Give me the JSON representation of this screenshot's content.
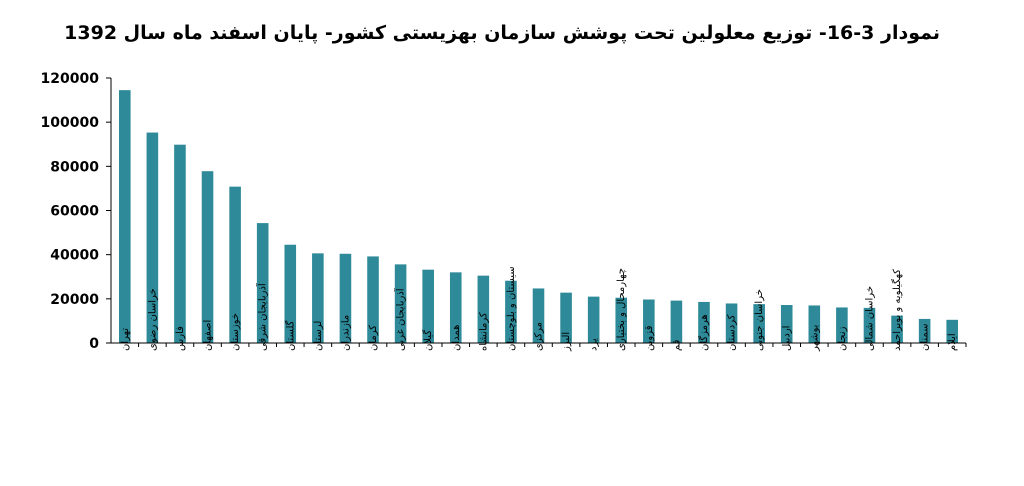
{
  "chart_data": {
    "type": "bar",
    "title": "نمودار 3-16- توزیع معلولین تحت پوشش سازمان بهزیستی کشور- پایان اسفند ماه سال 1392",
    "xlabel": "",
    "ylabel": "",
    "ylim": [
      0,
      120000
    ],
    "yticks": [
      "0",
      "20000",
      "40000",
      "60000",
      "80000",
      "100000",
      "120000"
    ],
    "grid": false,
    "color": "#2e8a99",
    "categories": [
      "تهران",
      "خراسان رضوی",
      "فارس",
      "اصفهان",
      "خوزستان",
      "آذربایجان شرقی",
      "گلستان",
      "لرستان",
      "مازندران",
      "کرمان",
      "آذربایجان غربی",
      "گیلان",
      "همدان",
      "کرمانشاه",
      "سیستان و بلوچستان",
      "مرکزی",
      "البرز",
      "یزد",
      "چهارمحال و بختیاری",
      "قزوین",
      "قم",
      "هرمزگان",
      "کردستان",
      "خراسان جنوبی",
      "اردبیل",
      "بوشهر",
      "زنجان",
      "خراسان شمالی",
      "کهگیلویه و بویراحمد",
      "سمنان",
      "ایلام"
    ],
    "values": [
      114500,
      95300,
      89800,
      77800,
      70800,
      54300,
      44500,
      40600,
      40400,
      39200,
      35600,
      33200,
      32000,
      30500,
      28200,
      24700,
      22800,
      21000,
      20500,
      19700,
      19200,
      18600,
      17900,
      17600,
      17200,
      17000,
      16100,
      15900,
      12400,
      10900,
      10500
    ]
  }
}
